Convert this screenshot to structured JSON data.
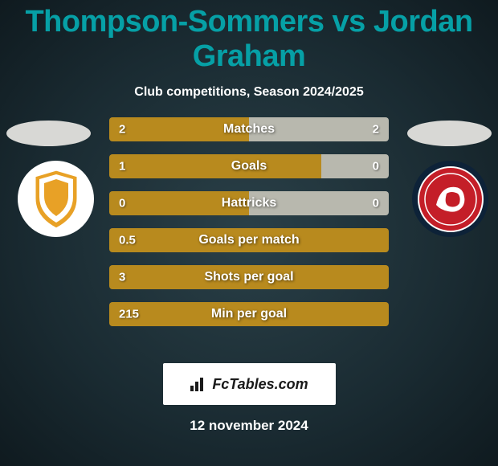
{
  "title": "Thompson-Sommers vs Jordan Graham",
  "subtitle": "Club competitions, Season 2024/2025",
  "date": "12 november 2024",
  "brand": "FcTables.com",
  "colors": {
    "left_bar": "#b88a1e",
    "right_bar": "#b8b8ae",
    "row_bg": "#2f3a3f"
  },
  "left_team": {
    "shield_fill": "#e8a126",
    "shield_stroke": "#ffffff",
    "badge_bg": "#ffffff"
  },
  "right_team": {
    "circle_fill": "#c41e28",
    "accent": "#ffffff",
    "badge_bg": "#0d2238"
  },
  "rows": [
    {
      "label": "Matches",
      "left_val": "2",
      "right_val": "2",
      "left_pct": 50,
      "right_pct": 50
    },
    {
      "label": "Goals",
      "left_val": "1",
      "right_val": "0",
      "left_pct": 76,
      "right_pct": 24
    },
    {
      "label": "Hattricks",
      "left_val": "0",
      "right_val": "0",
      "left_pct": 50,
      "right_pct": 50
    },
    {
      "label": "Goals per match",
      "left_val": "0.5",
      "right_val": "",
      "left_pct": 100,
      "right_pct": 0
    },
    {
      "label": "Shots per goal",
      "left_val": "3",
      "right_val": "",
      "left_pct": 100,
      "right_pct": 0
    },
    {
      "label": "Min per goal",
      "left_val": "215",
      "right_val": "",
      "left_pct": 100,
      "right_pct": 0
    }
  ]
}
